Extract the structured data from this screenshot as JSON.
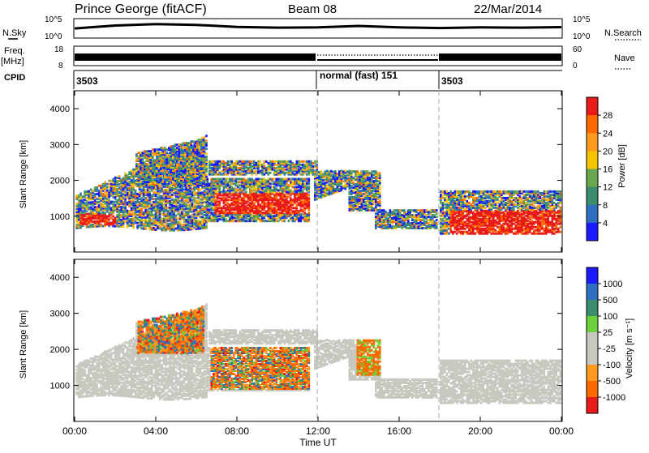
{
  "header": {
    "station": "Prince George (fitACF)",
    "beam": "Beam 08",
    "date": "22/Mar/2014"
  },
  "left_labels": {
    "nsky": "N.Sky",
    "freq": "Freq.",
    "freq_unit": "[MHz]",
    "cpid": "CPID"
  },
  "right_labels": {
    "nsearch": "N.Search",
    "nave": "Nave"
  },
  "noise_panel": {
    "ytick_top": "10^5",
    "ytick_bottom": "10^0"
  },
  "freq_panel": {
    "left_ticks": [
      "18",
      "8"
    ],
    "right_ticks": [
      "60",
      "0"
    ]
  },
  "cpid_panel": {
    "segments": [
      "3503",
      "normal (fast) 151",
      "3503"
    ]
  },
  "x_axis": {
    "label": "Time UT",
    "ticks": [
      "00:00",
      "04:00",
      "08:00",
      "12:00",
      "16:00",
      "20:00",
      "00:00"
    ]
  },
  "colors": {
    "power": [
      "#1a1aff",
      "#2f6fbf",
      "#3c8c6e",
      "#6aa84f",
      "#f5c400",
      "#ff9a1f",
      "#ff6a00",
      "#e81a1a"
    ],
    "velocity": [
      "#e81a1a",
      "#ff6a00",
      "#ff9a1f",
      "#c8c8c0",
      "#c8c8c0",
      "#6dcf3c",
      "#3c8c6e",
      "#2f6fbf",
      "#1a1aff"
    ]
  },
  "chart_data": [
    {
      "type": "line",
      "title": "N.Sky / N.Search",
      "x": [
        "00:00",
        "02:00",
        "04:00",
        "06:00",
        "08:00",
        "10:00",
        "12:00",
        "14:00",
        "16:00",
        "18:00",
        "20:00",
        "22:00",
        "24:00"
      ],
      "yscale": "log",
      "ylim": [
        1,
        100000
      ],
      "series": [
        {
          "name": "N.Sky",
          "values": [
            300,
            2000,
            5000,
            3000,
            800,
            500,
            600,
            1500,
            600,
            400,
            600,
            500,
            700
          ]
        }
      ]
    },
    {
      "type": "area",
      "title": "Freq. [MHz]",
      "ylim": [
        8,
        18
      ],
      "x_ranges": [
        [
          "00:00",
          "12:00"
        ],
        [
          "12:00",
          "18:00"
        ],
        [
          "18:00",
          "24:00"
        ]
      ],
      "series": [
        {
          "name": "Freq.",
          "values": [
            11,
            8,
            11
          ]
        },
        {
          "name": "Nave",
          "values": [
            0,
            15,
            0
          ]
        }
      ]
    },
    {
      "type": "heatmap",
      "ylabel": "Slant Range [km]",
      "xlabel": "Time UT",
      "ylim": [
        0,
        4500
      ],
      "yticks": [
        1000,
        2000,
        3000,
        4000
      ],
      "colorbar": {
        "label": "Power [dB]",
        "ticks": [
          4,
          8,
          12,
          16,
          20,
          24,
          28
        ],
        "range": [
          0,
          32
        ]
      },
      "dashed_times": [
        "12:00",
        "18:00"
      ]
    },
    {
      "type": "heatmap",
      "ylabel": "Slant Range [km]",
      "xlabel": "Time UT",
      "ylim": [
        0,
        4500
      ],
      "yticks": [
        1000,
        2000,
        3000,
        4000
      ],
      "colorbar": {
        "label": "Velocity [m s⁻¹]",
        "ticks": [
          1000,
          500,
          100,
          25,
          -25,
          -100,
          -500,
          -1000
        ]
      },
      "dashed_times": [
        "12:00",
        "18:00"
      ]
    }
  ]
}
